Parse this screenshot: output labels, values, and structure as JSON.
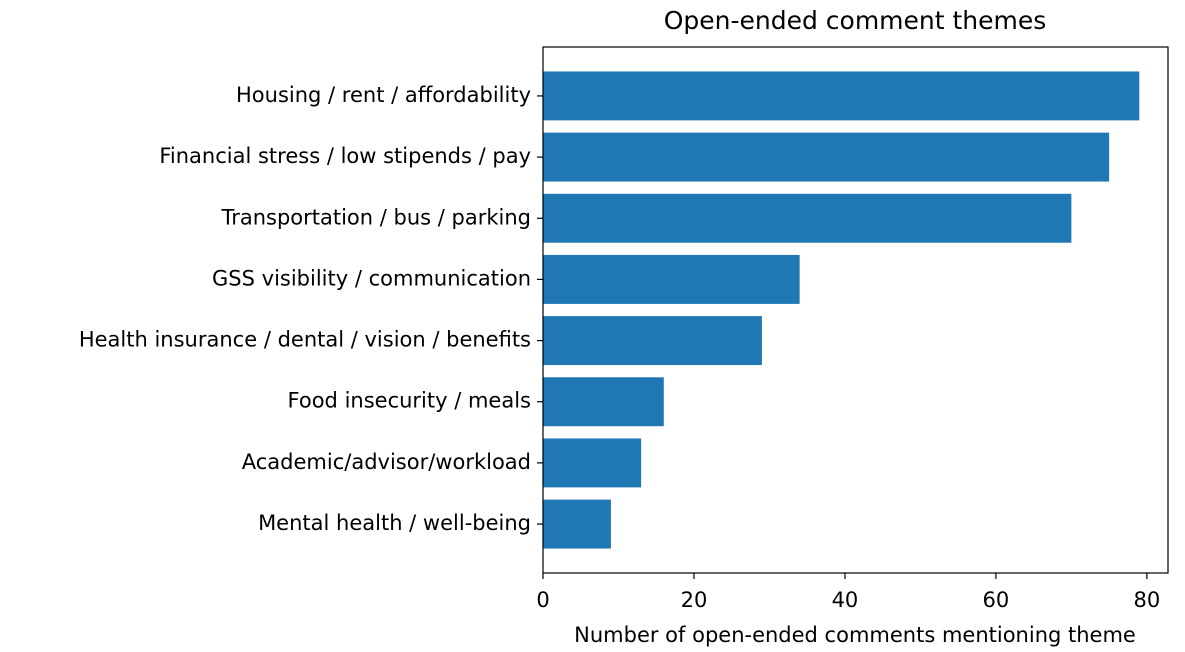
{
  "chart_data": {
    "type": "barh",
    "title": "Open-ended comment themes",
    "xlabel": "Number of open-ended comments mentioning theme",
    "categories": [
      "Housing / rent / affordability",
      "Financial stress / low stipends / pay",
      "Transportation / bus / parking",
      "GSS visibility / communication",
      "Health insurance / dental / vision / benefits",
      "Food insecurity / meals",
      "Academic/advisor/workload",
      "Mental health / well-being"
    ],
    "values": [
      79,
      75,
      70,
      34,
      29,
      16,
      13,
      9
    ],
    "color": "#1f77b4",
    "xlim": [
      0,
      82.8
    ],
    "xticks": [
      0,
      20,
      40,
      60,
      80
    ]
  }
}
